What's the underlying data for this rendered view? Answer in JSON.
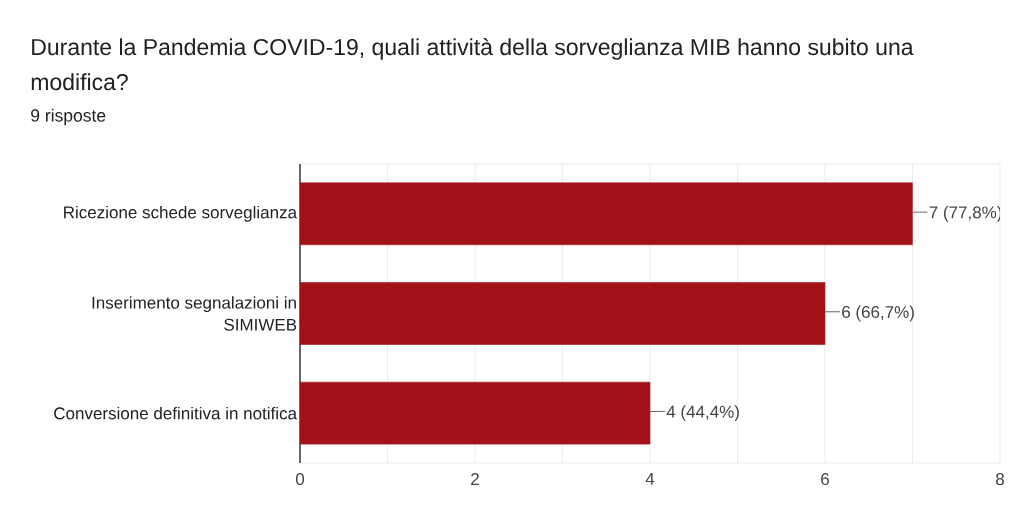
{
  "chart_data": {
    "type": "bar",
    "orientation": "horizontal",
    "title": "Durante la Pandemia COVID-19, quali attività della sorveglianza MIB hanno subito una modifica?",
    "subtitle": "9 risposte",
    "categories": [
      "Ricezione schede sorveglianza",
      "Inserimento segnalazioni in SIMIWEB",
      "Conversione definitiva in notifica"
    ],
    "values": [
      7,
      6,
      4
    ],
    "color": "#a31119",
    "value_labels": [
      "7 (77,8%)",
      "6 (66,7%)",
      "4 (44,4%)"
    ],
    "xlim": [
      0,
      8
    ],
    "xticks": [
      0,
      {
        "value": 1,
        "label": null
      },
      2,
      {
        "value": 3,
        "label": null
      },
      4,
      {
        "value": 5,
        "label": null
      },
      6,
      {
        "value": 7,
        "label": null
      },
      8
    ],
    "grid": "x"
  }
}
